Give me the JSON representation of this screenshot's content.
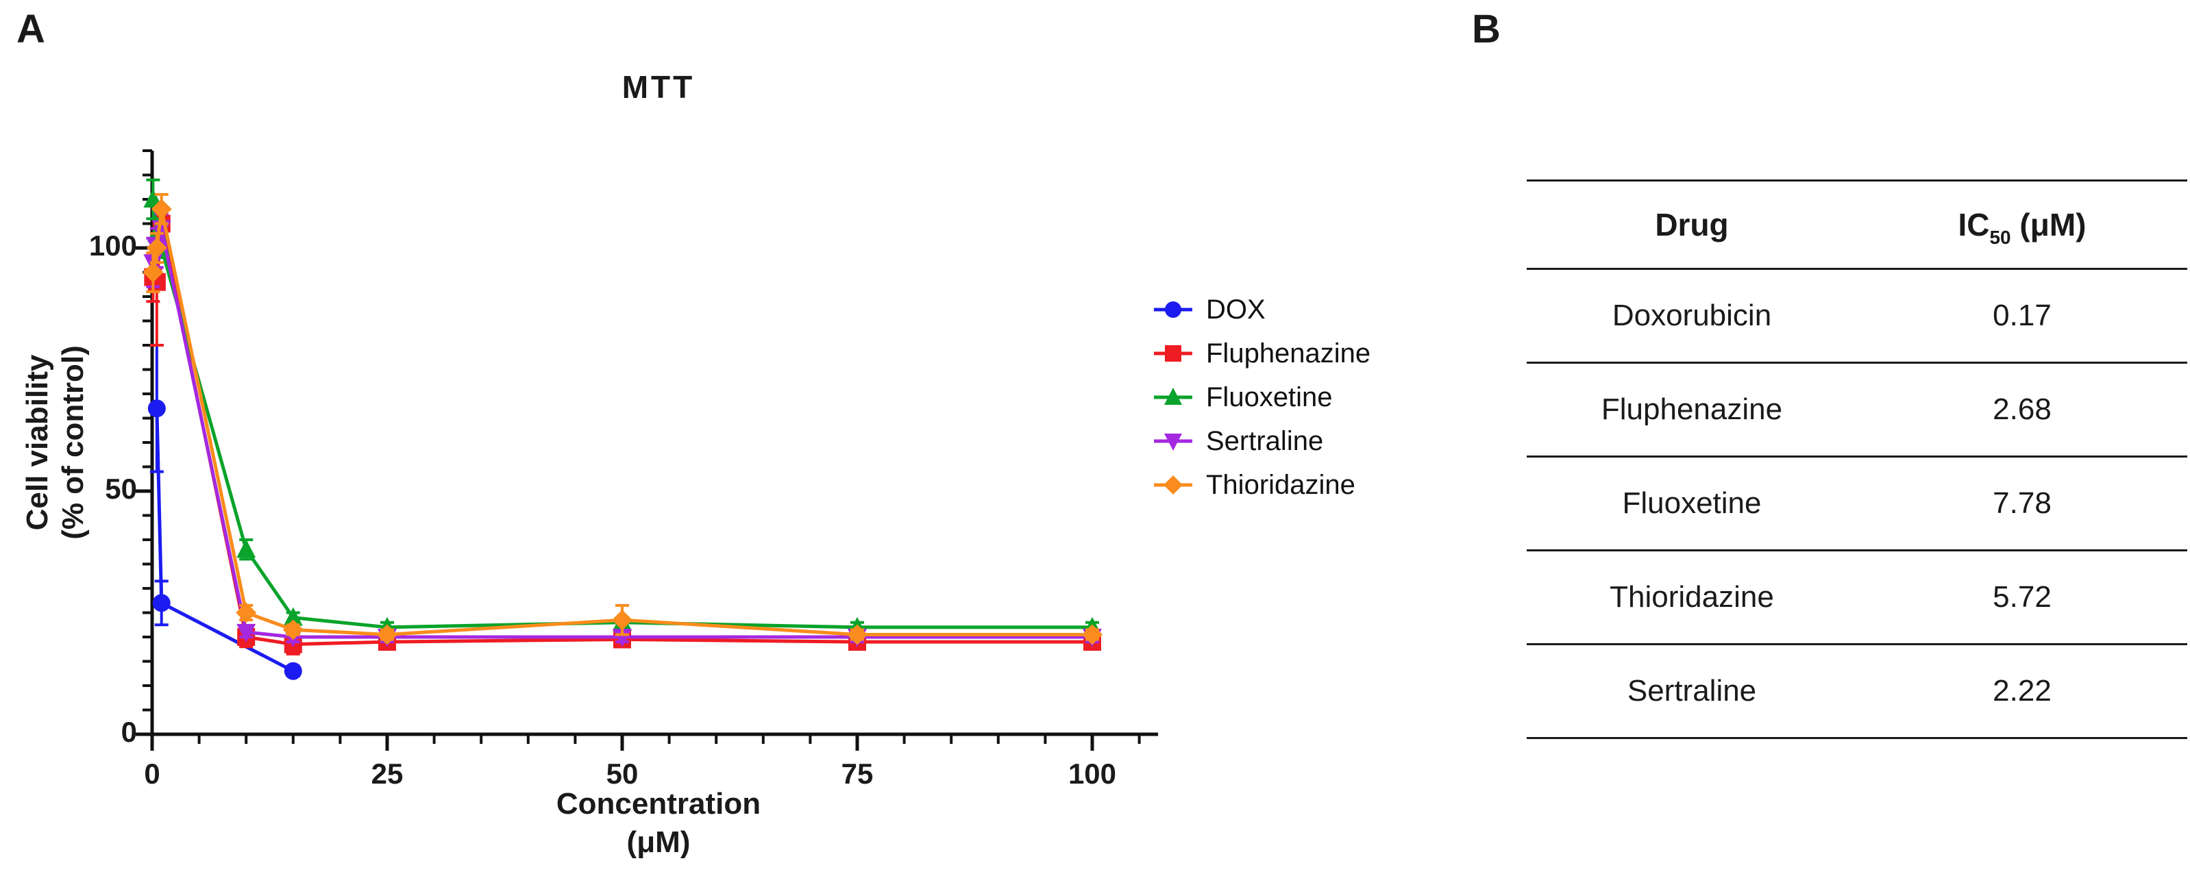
{
  "panels": {
    "a_label": "A",
    "b_label": "B"
  },
  "chart_data": {
    "type": "line",
    "title": "MTT",
    "xlabel_line1": "Concentration",
    "xlabel_line2": "(μM)",
    "ylabel_line1": "Cell viability",
    "ylabel_line2": "(% of control)",
    "xlim": [
      0,
      107
    ],
    "ylim": [
      0,
      120
    ],
    "x_major_ticks": [
      0,
      25,
      50,
      75,
      100
    ],
    "x_minor_step": 5,
    "x_minor_max": 105,
    "y_major_ticks": [
      0,
      50,
      100
    ],
    "y_minor_step": 5,
    "grid": false,
    "legend_position": "right",
    "axis_color": "#111111",
    "series": [
      {
        "name": "DOX",
        "color": "#1c1cf0",
        "marker": "circle",
        "x": [
          0.5,
          1,
          15
        ],
        "y": [
          67,
          27,
          13
        ],
        "err": [
          13,
          4.5,
          1
        ]
      },
      {
        "name": "Fluphenazine",
        "color": "#ee1c23",
        "marker": "square",
        "x": [
          0.1,
          0.5,
          1,
          10,
          15,
          25,
          50,
          75,
          100
        ],
        "y": [
          94,
          93,
          105,
          20,
          18.5,
          19,
          19.5,
          19,
          19
        ],
        "err": [
          5,
          13,
          3,
          2,
          2,
          1.5,
          1.5,
          1.5,
          1.5
        ]
      },
      {
        "name": "Fluoxetine",
        "color": "#0aa32b",
        "marker": "triangle-up",
        "x": [
          0.1,
          0.5,
          1,
          10,
          15,
          25,
          50,
          75,
          100
        ],
        "y": [
          110,
          103,
          100,
          38,
          24,
          22,
          23,
          22,
          22
        ],
        "err": [
          4,
          3,
          2,
          2,
          1,
          1,
          1,
          1,
          1
        ]
      },
      {
        "name": "Sertraline",
        "color": "#a428e0",
        "marker": "triangle-down",
        "x": [
          0.1,
          0.5,
          1,
          10,
          15,
          25,
          50,
          75,
          100
        ],
        "y": [
          97,
          100,
          104,
          21,
          20,
          20,
          20,
          20,
          20
        ],
        "err": [
          5,
          4,
          3,
          1,
          1,
          1,
          1,
          1,
          1
        ]
      },
      {
        "name": "Thioridazine",
        "color": "#f98c1c",
        "marker": "diamond",
        "x": [
          0.1,
          0.5,
          1,
          10,
          15,
          25,
          50,
          75,
          100
        ],
        "y": [
          95,
          100,
          108,
          25,
          21.5,
          20.5,
          23.5,
          20.5,
          20.5
        ],
        "err": [
          4,
          3,
          3,
          1.5,
          1,
          1,
          3,
          1,
          1
        ]
      }
    ]
  },
  "table": {
    "col1_header": "Drug",
    "col2_header_base": "IC",
    "col2_header_sub": "50",
    "col2_header_unit": " (μM)",
    "rows": [
      {
        "drug": "Doxorubicin",
        "ic50": "0.17"
      },
      {
        "drug": "Fluphenazine",
        "ic50": "2.68"
      },
      {
        "drug": "Fluoxetine",
        "ic50": "7.78"
      },
      {
        "drug": "Thioridazine",
        "ic50": "5.72"
      },
      {
        "drug": "Sertraline",
        "ic50": "2.22"
      }
    ]
  }
}
